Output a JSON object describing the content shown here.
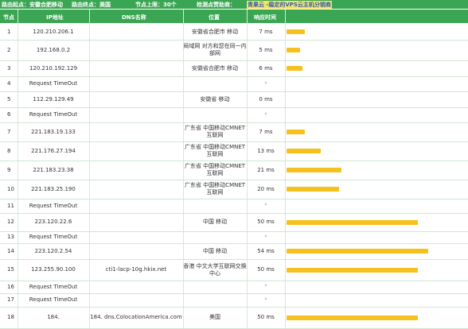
{
  "topbar": {
    "source": "路由起点：安徽合肥移动",
    "dest": "路由终点：美国",
    "hops": "节点上限：30个",
    "detector": "检测点赞助商：",
    "sponsor": "青果云 -稳定的VPS云主机分销商"
  },
  "columns": [
    "节点",
    "IP地址",
    "DNS名称",
    "位置",
    "响应时间"
  ],
  "colors": {
    "header_green": "#3aa552",
    "bar_yellow": "#f6c11c"
  },
  "rows": [
    {
      "idx": "1",
      "ip": "120.210.206.1",
      "dns": "",
      "loc": "安徽省合肥市 移动",
      "ms": "7 ms",
      "bar": 7
    },
    {
      "idx": "2",
      "ip": "192.168.0.2",
      "dns": "",
      "loc": "局域网 对方和您在同一内部网",
      "ms": "5 ms",
      "bar": 5
    },
    {
      "idx": "3",
      "ip": "120.210.192.129",
      "dns": "",
      "loc": "安徽省合肥市 移动",
      "ms": "6 ms",
      "bar": 6
    },
    {
      "idx": "4",
      "ip": "Request TimeOut",
      "dns": "",
      "loc": "",
      "ms": "*",
      "bar": 0
    },
    {
      "idx": "5",
      "ip": "112.29.129.49",
      "dns": "",
      "loc": "安徽省 移动",
      "ms": "0 ms",
      "bar": 0
    },
    {
      "idx": "6",
      "ip": "Request TimeOut",
      "dns": "",
      "loc": "",
      "ms": "*",
      "bar": 0
    },
    {
      "idx": "7",
      "ip": "221.183.19.133",
      "dns": "",
      "loc": "广东省 中国移动CMNET 互联网",
      "ms": "7 ms",
      "bar": 7
    },
    {
      "idx": "8",
      "ip": "221.176.27.194",
      "dns": "",
      "loc": "广东省 中国移动CMNET 互联网",
      "ms": "13 ms",
      "bar": 13
    },
    {
      "idx": "9",
      "ip": "221.183.23.38",
      "dns": "",
      "loc": "广东省 中国移动CMNET 互联网",
      "ms": "21 ms",
      "bar": 21
    },
    {
      "idx": "10",
      "ip": "221.183.25.190",
      "dns": "",
      "loc": "广东省 中国移动CMNET 互联网",
      "ms": "20 ms",
      "bar": 20
    },
    {
      "idx": "11",
      "ip": "Request TimeOut",
      "dns": "",
      "loc": "",
      "ms": "*",
      "bar": 0
    },
    {
      "idx": "12",
      "ip": "223.120.22.6",
      "dns": "",
      "loc": "中国 移动",
      "ms": "50 ms",
      "bar": 50
    },
    {
      "idx": "13",
      "ip": "Request TimeOut",
      "dns": "",
      "loc": "",
      "ms": "*",
      "bar": 0
    },
    {
      "idx": "14",
      "ip": "223.120.2.54",
      "dns": "",
      "loc": "中国 移动",
      "ms": "54 ms",
      "bar": 54
    },
    {
      "idx": "15",
      "ip": "123.255.90.100",
      "dns": "cti1-lacp-10g.hkix.net",
      "loc": "香港 中文大学互联网交换中心",
      "ms": "50 ms",
      "bar": 50
    },
    {
      "idx": "16",
      "ip": "Request TimeOut",
      "dns": "",
      "loc": "",
      "ms": "*",
      "bar": 0
    },
    {
      "idx": "17",
      "ip": "Request TimeOut",
      "dns": "",
      "loc": "",
      "ms": "*",
      "bar": 0
    },
    {
      "idx": "18",
      "ip": "184.",
      "dns": "184.        dns.ColocationAmerica.com",
      "loc": "美国",
      "ms": "50 ms",
      "bar": 50
    }
  ]
}
